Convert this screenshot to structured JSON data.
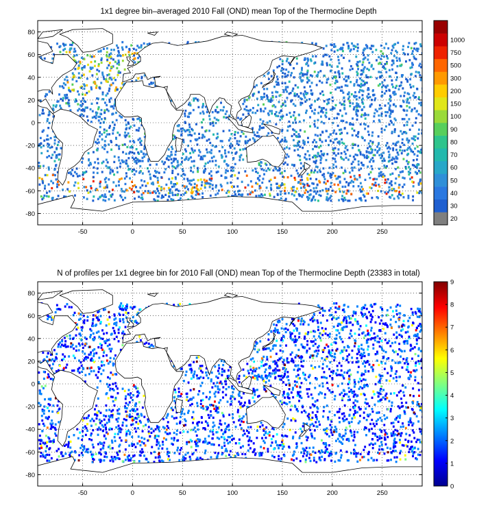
{
  "panels": [
    {
      "title": "1x1 degree bin–averaged 2010 Fall (OND) mean Top of the Thermocline Depth",
      "x_ticks": [
        "-50",
        "0",
        "50",
        "100",
        "150",
        "200",
        "250"
      ],
      "y_ticks": [
        "80",
        "60",
        "40",
        "20",
        "0",
        "-20",
        "-40",
        "-60",
        "-80"
      ],
      "colorbar": {
        "kind": "discrete",
        "labels": [
          "20",
          "30",
          "40",
          "50",
          "60",
          "70",
          "80",
          "90",
          "100",
          "150",
          "200",
          "300",
          "500",
          "750",
          "1000"
        ],
        "colors": [
          "#7f7f7f",
          "#1f5fd0",
          "#2a78e0",
          "#2f8fd8",
          "#28a7c8",
          "#23b9ad",
          "#2fc48c",
          "#58cf5c",
          "#9ada3a",
          "#e0e619",
          "#ffcc00",
          "#ff9900",
          "#ff6600",
          "#ee2200",
          "#cc0000",
          "#990000"
        ]
      },
      "x_range": [
        -95,
        290
      ],
      "y_range": [
        -90,
        90
      ]
    },
    {
      "title": "N of profiles per 1x1 degree bin for 2010 Fall (OND) mean Top of the Thermocline Depth  (23383 in total)",
      "x_ticks": [
        "-50",
        "0",
        "50",
        "100",
        "150",
        "200",
        "250"
      ],
      "y_ticks": [
        "80",
        "60",
        "40",
        "20",
        "0",
        "-20",
        "-40",
        "-60",
        "-80"
      ],
      "colorbar": {
        "kind": "continuous",
        "labels": [
          "0",
          "1",
          "2",
          "3",
          "4",
          "5",
          "6",
          "7",
          "8",
          "9"
        ],
        "colors": [
          "#00008f",
          "#0000ff",
          "#0080ff",
          "#00ffff",
          "#80ff80",
          "#ffff00",
          "#ff8000",
          "#ff0000",
          "#800000"
        ]
      },
      "x_range": [
        -95,
        290
      ],
      "y_range": [
        -90,
        90
      ]
    }
  ]
}
